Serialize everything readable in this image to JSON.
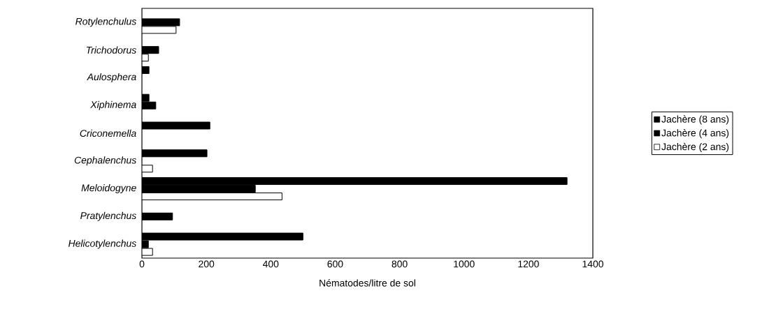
{
  "chart_data": {
    "type": "bar",
    "orientation": "horizontal",
    "xlabel": "Nématodes/litre de sol",
    "categories": [
      "Rotylenchulus",
      "Trichodorus",
      "Aulosphera",
      "Xiphinema",
      "Criconemella",
      "Cephalenchus",
      "Meloidogyne",
      "Pratylenchus",
      "Helicotylenchus"
    ],
    "series": [
      {
        "name": "Jachère (8 ans)",
        "color": "#000000",
        "values": [
          null,
          null,
          22,
          22,
          211,
          202,
          1320,
          null,
          500
        ]
      },
      {
        "name": "Jachère (4 ans)",
        "color": "#000000",
        "values": [
          117,
          52,
          null,
          43,
          null,
          null,
          352,
          95,
          20
        ]
      },
      {
        "name": "Jachère (2 ans)",
        "color": "#ffffff",
        "values": [
          106,
          20,
          null,
          null,
          null,
          33,
          435,
          null,
          33
        ]
      }
    ],
    "xlim": [
      0,
      1400
    ],
    "xticks": [
      0,
      200,
      400,
      600,
      800,
      1000,
      1200,
      1400
    ],
    "legend": "right",
    "grid": false
  }
}
